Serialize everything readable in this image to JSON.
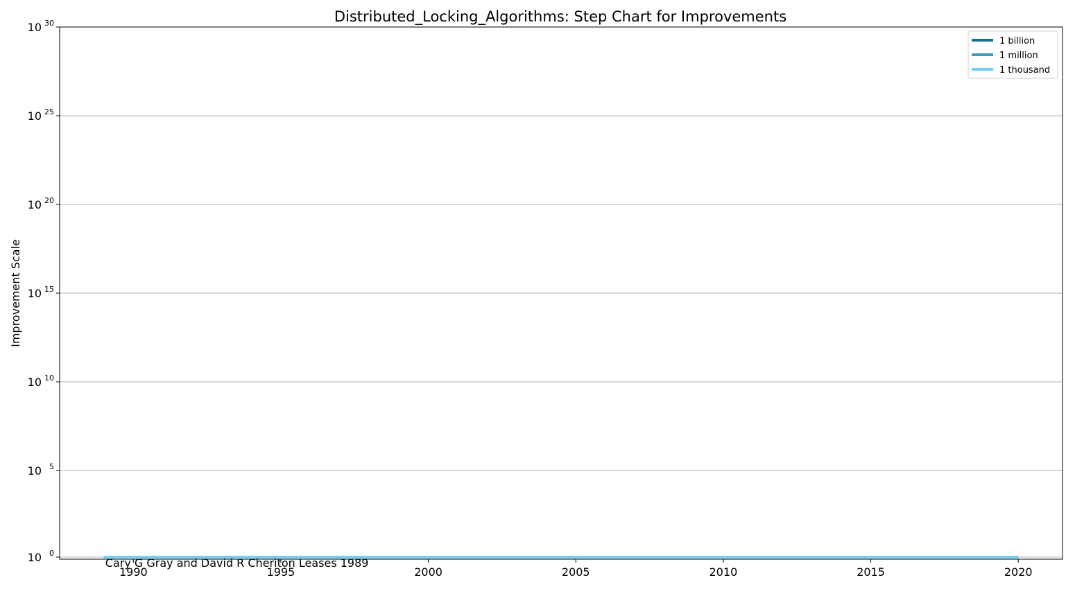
{
  "chart_data": {
    "type": "line",
    "title": "Distributed_Locking_Algorithms: Step Chart for Improvements",
    "xlabel": "",
    "ylabel": "Improvement Scale",
    "x_ticks": [
      1990,
      1995,
      2000,
      2005,
      2010,
      2015,
      2020
    ],
    "xlim": [
      1987.5,
      2021.5
    ],
    "y_scale": "log",
    "y_tick_exponents": [
      0,
      5,
      10,
      15,
      20,
      25,
      30
    ],
    "y_tick_base": "10",
    "ylim": [
      1,
      1e+30
    ],
    "grid": "horizontal",
    "legend_position": "top-right",
    "series": [
      {
        "name": "1 billion",
        "color": "#1a6e8e",
        "x": [
          1989,
          2020
        ],
        "y": [
          1,
          1
        ]
      },
      {
        "name": "1 million",
        "color": "#3a9dbd",
        "x": [
          1989,
          2020
        ],
        "y": [
          1,
          1
        ]
      },
      {
        "name": "1 thousand",
        "color": "#73d0f4",
        "x": [
          1989,
          2020
        ],
        "y": [
          1,
          1
        ]
      }
    ],
    "annotations": [
      {
        "text": "Cary G Gray and David R Cheriton Leases 1989",
        "x": 1989,
        "y": 1
      }
    ]
  }
}
